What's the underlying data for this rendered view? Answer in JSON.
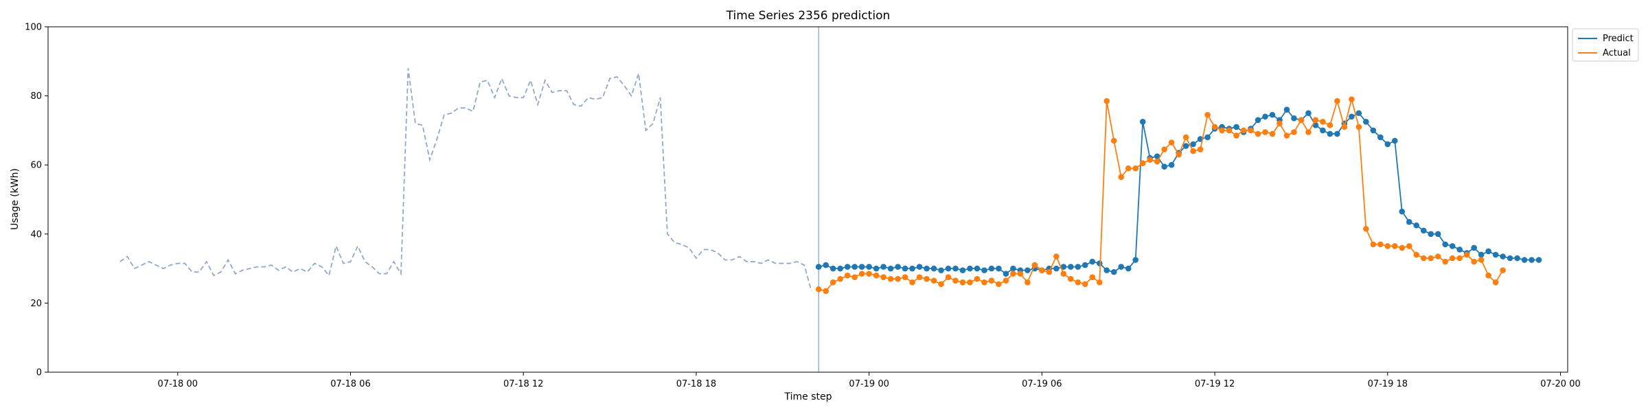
{
  "chart_data": {
    "type": "line",
    "title": "Time Series 2356 prediction",
    "xlabel": "Time step",
    "ylabel": "Usage (kWh)",
    "ylim": [
      0,
      100
    ],
    "yticks": [
      0,
      20,
      40,
      60,
      80,
      100
    ],
    "xlim_hours": [
      -4.5,
      48.25
    ],
    "xticks": [
      {
        "hour": 0,
        "label": "07-18 00"
      },
      {
        "hour": 6,
        "label": "07-18 06"
      },
      {
        "hour": 12,
        "label": "07-18 12"
      },
      {
        "hour": 18,
        "label": "07-18 18"
      },
      {
        "hour": 24,
        "label": "07-19 00"
      },
      {
        "hour": 30,
        "label": "07-19 06"
      },
      {
        "hour": 36,
        "label": "07-19 12"
      },
      {
        "hour": 42,
        "label": "07-19 18"
      },
      {
        "hour": 48,
        "label": "07-20 00"
      }
    ],
    "forecast_start_hour": 22.25,
    "legend_position": "outside-upper-right",
    "history": {
      "start_hour": -2.0,
      "step_hours": 0.25,
      "color": "#8fa9c9",
      "values": [
        32,
        33.5,
        30,
        31,
        32,
        31,
        30,
        31,
        31.5,
        31.5,
        29,
        29,
        32,
        28,
        29,
        32.5,
        28.5,
        29.5,
        30,
        30.5,
        30.5,
        31,
        29.5,
        30.5,
        29,
        30,
        29,
        31.5,
        30.5,
        28,
        36.5,
        31.5,
        32,
        36.5,
        32,
        30.5,
        28.5,
        28.5,
        32,
        28.5,
        88,
        72,
        71.5,
        61.5,
        67.5,
        74.5,
        75,
        76.5,
        76.5,
        75.5,
        84,
        84.5,
        79.5,
        85,
        80,
        79.5,
        79.5,
        84.5,
        77.5,
        84.5,
        81,
        81.5,
        81.5,
        77.5,
        77,
        79.5,
        79,
        79.5,
        85,
        85.5,
        83,
        80,
        86.5,
        70,
        72,
        79.5,
        40,
        37.5,
        37,
        36,
        33,
        35.5,
        35.5,
        34.5,
        32.5,
        32.5,
        33.5,
        32,
        32,
        31.5,
        32.5,
        31.5,
        31.5,
        31.5,
        32,
        31,
        23.5
      ]
    },
    "series": [
      {
        "name": "Predict",
        "color": "#1f77b4",
        "start_hour": 22.25,
        "step_hours": 0.25,
        "values": [
          30.5,
          31,
          30,
          30,
          30.5,
          30.5,
          30.5,
          30.5,
          30,
          30.5,
          30,
          30.5,
          30,
          30,
          30.5,
          30,
          30,
          29.5,
          30,
          30,
          29.5,
          30,
          30,
          29.5,
          30,
          30,
          28.5,
          30,
          29.5,
          29.5,
          30,
          29.5,
          30,
          30,
          30.5,
          30.5,
          30.5,
          31,
          32,
          31.5,
          29.5,
          29,
          30.5,
          30,
          32.5,
          72.5,
          62,
          62.5,
          59.5,
          60,
          63.5,
          65.5,
          66,
          67.5,
          68,
          70.5,
          71,
          70.5,
          71,
          69.5,
          70.5,
          73,
          74,
          74.5,
          73,
          76,
          73.5,
          73,
          75,
          71.5,
          70,
          69,
          69,
          72,
          74,
          75,
          72.5,
          70,
          68,
          66,
          67,
          46.5,
          43.5,
          42.5,
          41,
          40,
          40,
          37,
          36.5,
          35.5,
          34.5,
          36,
          34,
          35,
          34,
          33.5,
          33,
          33,
          32.5,
          32.5,
          32.5
        ]
      },
      {
        "name": "Actual",
        "color": "#ff7f0e",
        "start_hour": 22.25,
        "step_hours": 0.25,
        "values": [
          24,
          23.5,
          26,
          27,
          28,
          27.5,
          28.5,
          28.5,
          28,
          27.5,
          27,
          27,
          27.5,
          26,
          27.5,
          27,
          26.5,
          25.5,
          27.5,
          26.5,
          26,
          26,
          27,
          26,
          26.5,
          25.5,
          26.5,
          28.5,
          28.5,
          26,
          31,
          29.5,
          29,
          33.5,
          28.5,
          27,
          26,
          25.5,
          27.5,
          26,
          78.5,
          67,
          56.5,
          59,
          59,
          60.5,
          61.5,
          61,
          64.5,
          66.5,
          63,
          68,
          64,
          64.5,
          74.5,
          71,
          70,
          70,
          68.5,
          70,
          70,
          69,
          69.5,
          69,
          72,
          68.5,
          69.5,
          73,
          69.5,
          73,
          72.5,
          71.5,
          78.5,
          71,
          79,
          71,
          41.5,
          37,
          37,
          36.5,
          36.5,
          36,
          36.5,
          34,
          33,
          33,
          33.5,
          32,
          33,
          33,
          34,
          32,
          32.5,
          28,
          26,
          29.5
        ]
      }
    ]
  }
}
